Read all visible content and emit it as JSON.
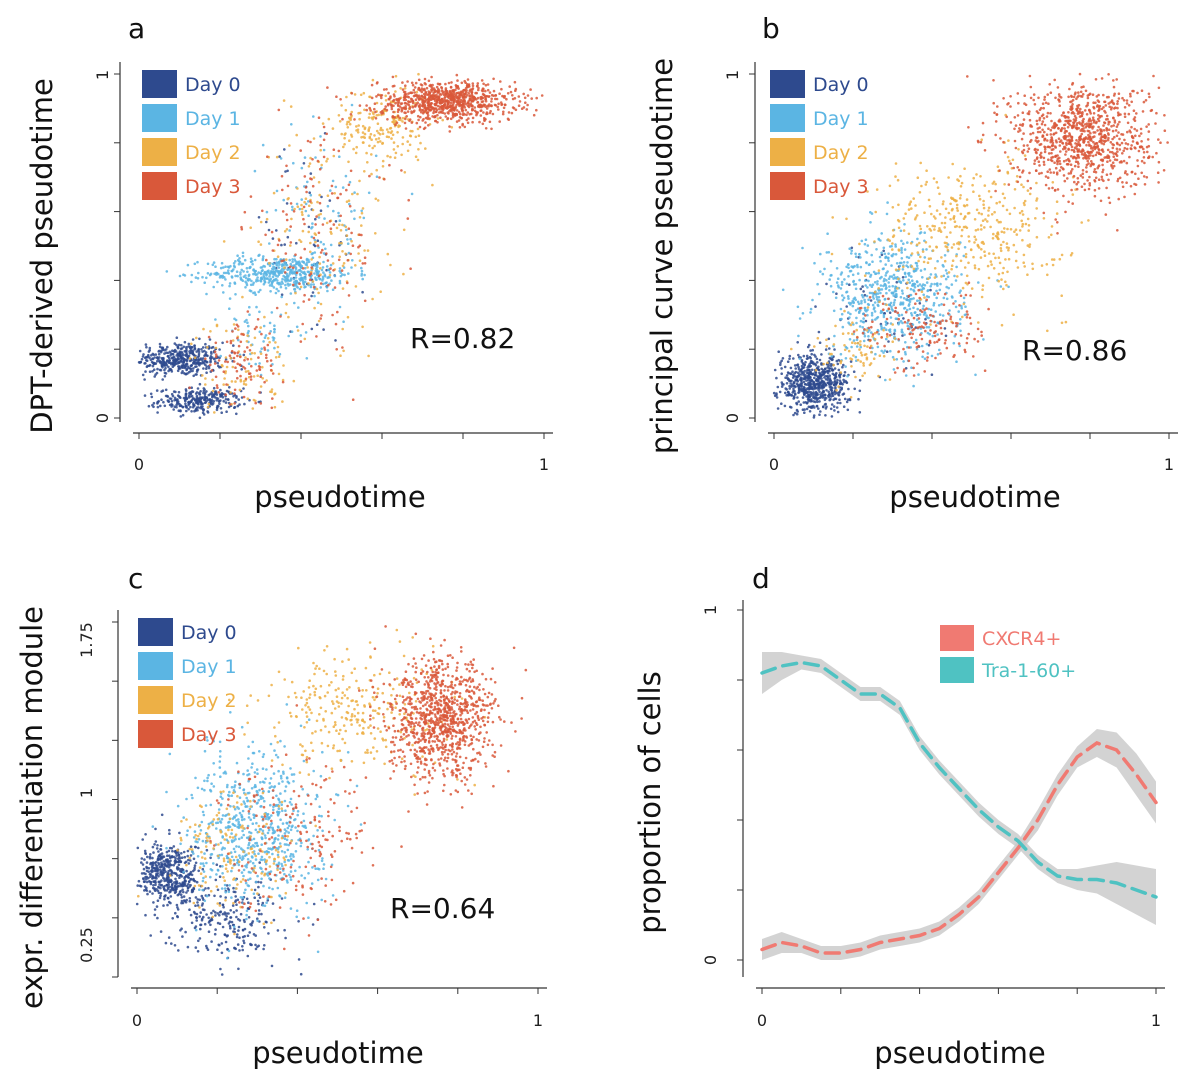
{
  "chart_data": [
    {
      "panel": "a",
      "type": "scatter",
      "xlabel": "pseudotime",
      "ylabel": "DPT-derived pseudotime",
      "xlim": [
        0,
        1
      ],
      "ylim": [
        0,
        1
      ],
      "x_ticks": [
        "0",
        "1"
      ],
      "y_ticks": [
        "0",
        "1"
      ],
      "annotation": "R=0.82",
      "legend": [
        {
          "name": "Day 0",
          "color": "#2e4a8e"
        },
        {
          "name": "Day 1",
          "color": "#5bb5e3"
        },
        {
          "name": "Day 2",
          "color": "#edb046"
        },
        {
          "name": "Day 3",
          "color": "#d9583a"
        }
      ],
      "legend_position": "top-left",
      "series": [
        {
          "name": "Day 0",
          "color": "#2e4a8e",
          "clusters": [
            {
              "x": 0.1,
              "y": 0.17,
              "sx": 0.055,
              "sy": 0.025,
              "n": 420
            },
            {
              "x": 0.15,
              "y": 0.05,
              "sx": 0.05,
              "sy": 0.018,
              "n": 280
            },
            {
              "x": 0.4,
              "y": 0.5,
              "sx": 0.08,
              "sy": 0.15,
              "n": 60
            }
          ]
        },
        {
          "name": "Day 1",
          "color": "#5bb5e3",
          "clusters": [
            {
              "x": 0.35,
              "y": 0.42,
              "sx": 0.09,
              "sy": 0.025,
              "n": 480
            },
            {
              "x": 0.45,
              "y": 0.6,
              "sx": 0.07,
              "sy": 0.12,
              "n": 90
            },
            {
              "x": 0.3,
              "y": 0.25,
              "sx": 0.05,
              "sy": 0.06,
              "n": 60
            }
          ]
        },
        {
          "name": "Day 2",
          "color": "#edb046",
          "clusters": [
            {
              "x": 0.6,
              "y": 0.85,
              "sx": 0.06,
              "sy": 0.06,
              "n": 200
            },
            {
              "x": 0.45,
              "y": 0.55,
              "sx": 0.08,
              "sy": 0.15,
              "n": 150
            },
            {
              "x": 0.25,
              "y": 0.15,
              "sx": 0.06,
              "sy": 0.07,
              "n": 90
            }
          ]
        },
        {
          "name": "Day 3",
          "color": "#d9583a",
          "clusters": [
            {
              "x": 0.76,
              "y": 0.92,
              "sx": 0.085,
              "sy": 0.03,
              "n": 850
            },
            {
              "x": 0.45,
              "y": 0.55,
              "sx": 0.09,
              "sy": 0.16,
              "n": 140
            },
            {
              "x": 0.25,
              "y": 0.15,
              "sx": 0.05,
              "sy": 0.06,
              "n": 100
            }
          ]
        }
      ]
    },
    {
      "panel": "b",
      "type": "scatter",
      "xlabel": "pseudotime",
      "ylabel": "principal curve pseudotime",
      "xlim": [
        0,
        1
      ],
      "ylim": [
        0,
        1
      ],
      "x_ticks": [
        "0",
        "1"
      ],
      "y_ticks": [
        "0",
        "1"
      ],
      "annotation": "R=0.86",
      "legend": [
        {
          "name": "Day 0",
          "color": "#2e4a8e"
        },
        {
          "name": "Day 1",
          "color": "#5bb5e3"
        },
        {
          "name": "Day 2",
          "color": "#edb046"
        },
        {
          "name": "Day 3",
          "color": "#d9583a"
        }
      ],
      "legend_position": "top-left",
      "series": [
        {
          "name": "Day 0",
          "color": "#2e4a8e",
          "clusters": [
            {
              "x": 0.1,
              "y": 0.1,
              "sx": 0.045,
              "sy": 0.04,
              "n": 650
            },
            {
              "x": 0.3,
              "y": 0.3,
              "sx": 0.08,
              "sy": 0.1,
              "n": 60
            }
          ]
        },
        {
          "name": "Day 1",
          "color": "#5bb5e3",
          "clusters": [
            {
              "x": 0.3,
              "y": 0.35,
              "sx": 0.09,
              "sy": 0.09,
              "n": 650
            }
          ]
        },
        {
          "name": "Day 2",
          "color": "#edb046",
          "clusters": [
            {
              "x": 0.5,
              "y": 0.55,
              "sx": 0.12,
              "sy": 0.1,
              "n": 400
            },
            {
              "x": 0.2,
              "y": 0.2,
              "sx": 0.05,
              "sy": 0.05,
              "n": 80
            }
          ]
        },
        {
          "name": "Day 3",
          "color": "#d9583a",
          "clusters": [
            {
              "x": 0.78,
              "y": 0.82,
              "sx": 0.09,
              "sy": 0.08,
              "n": 950
            },
            {
              "x": 0.38,
              "y": 0.25,
              "sx": 0.08,
              "sy": 0.06,
              "n": 150
            }
          ]
        }
      ]
    },
    {
      "panel": "c",
      "type": "scatter",
      "xlabel": "pseudotime",
      "ylabel": "expr. differentiation module",
      "xlim": [
        0,
        1
      ],
      "ylim": [
        0.1,
        1.9
      ],
      "x_ticks": [
        "0",
        "1"
      ],
      "y_ticks": [
        "0.25",
        "1",
        "1.75"
      ],
      "annotation": "R=0.64",
      "legend": [
        {
          "name": "Day 0",
          "color": "#2e4a8e"
        },
        {
          "name": "Day 1",
          "color": "#5bb5e3"
        },
        {
          "name": "Day 2",
          "color": "#edb046"
        },
        {
          "name": "Day 3",
          "color": "#d9583a"
        }
      ],
      "legend_position": "top-left",
      "series": [
        {
          "name": "Day 0",
          "color": "#2e4a8e",
          "clusters": [
            {
              "x": 0.08,
              "y": 0.62,
              "sx": 0.04,
              "sy": 0.08,
              "n": 450
            },
            {
              "x": 0.22,
              "y": 0.4,
              "sx": 0.07,
              "sy": 0.1,
              "n": 250
            }
          ]
        },
        {
          "name": "Day 1",
          "color": "#5bb5e3",
          "clusters": [
            {
              "x": 0.3,
              "y": 0.85,
              "sx": 0.08,
              "sy": 0.2,
              "n": 650
            }
          ]
        },
        {
          "name": "Day 2",
          "color": "#edb046",
          "clusters": [
            {
              "x": 0.55,
              "y": 1.45,
              "sx": 0.12,
              "sy": 0.15,
              "n": 280
            },
            {
              "x": 0.25,
              "y": 0.75,
              "sx": 0.08,
              "sy": 0.15,
              "n": 160
            }
          ]
        },
        {
          "name": "Day 3",
          "color": "#d9583a",
          "clusters": [
            {
              "x": 0.76,
              "y": 1.4,
              "sx": 0.065,
              "sy": 0.15,
              "n": 950
            },
            {
              "x": 0.4,
              "y": 0.85,
              "sx": 0.1,
              "sy": 0.2,
              "n": 180
            }
          ]
        }
      ]
    },
    {
      "panel": "d",
      "type": "line",
      "xlabel": "pseudotime",
      "ylabel": "proportion of cells",
      "xlim": [
        0,
        1
      ],
      "ylim": [
        0,
        1
      ],
      "x_ticks": [
        "0",
        "1"
      ],
      "y_ticks": [
        "0",
        "1"
      ],
      "legend_position": "top-right",
      "x": [
        0,
        0.05,
        0.1,
        0.15,
        0.2,
        0.25,
        0.3,
        0.35,
        0.4,
        0.45,
        0.5,
        0.55,
        0.6,
        0.65,
        0.7,
        0.75,
        0.8,
        0.85,
        0.9,
        0.95,
        1.0
      ],
      "series": [
        {
          "name": "CXCR4+",
          "color": "#f07a72",
          "values": [
            0.03,
            0.05,
            0.04,
            0.02,
            0.02,
            0.03,
            0.05,
            0.06,
            0.07,
            0.09,
            0.13,
            0.18,
            0.25,
            0.32,
            0.4,
            0.5,
            0.58,
            0.62,
            0.6,
            0.53,
            0.45
          ],
          "band": [
            0.03,
            0.03,
            0.02,
            0.02,
            0.02,
            0.02,
            0.02,
            0.02,
            0.02,
            0.02,
            0.02,
            0.02,
            0.02,
            0.02,
            0.03,
            0.03,
            0.03,
            0.04,
            0.05,
            0.06,
            0.06
          ]
        },
        {
          "name": "Tra-1-60+",
          "color": "#4fc2c2",
          "values": [
            0.82,
            0.84,
            0.85,
            0.84,
            0.8,
            0.76,
            0.76,
            0.72,
            0.62,
            0.55,
            0.49,
            0.43,
            0.38,
            0.34,
            0.28,
            0.24,
            0.23,
            0.23,
            0.22,
            0.2,
            0.18
          ],
          "band": [
            0.06,
            0.04,
            0.02,
            0.02,
            0.02,
            0.02,
            0.02,
            0.02,
            0.02,
            0.02,
            0.02,
            0.02,
            0.02,
            0.02,
            0.02,
            0.02,
            0.03,
            0.04,
            0.06,
            0.07,
            0.08
          ]
        }
      ]
    }
  ]
}
